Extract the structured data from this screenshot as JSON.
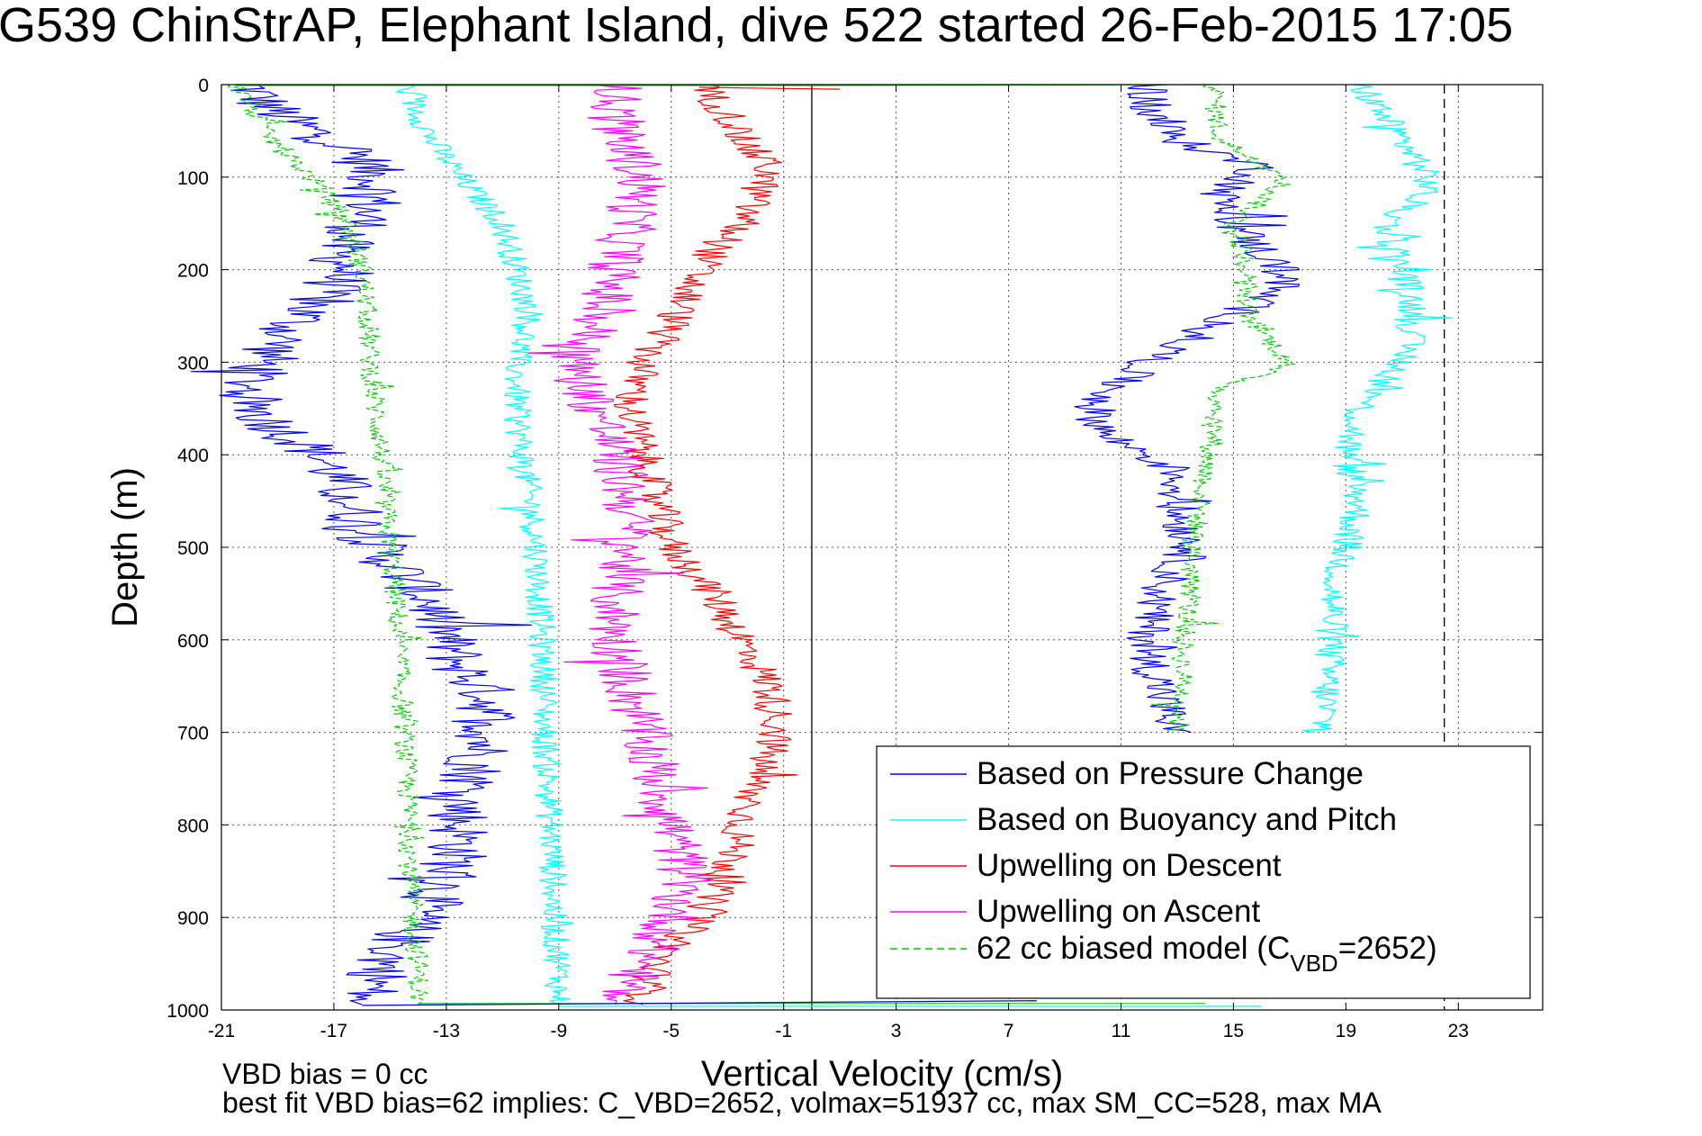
{
  "chart_data": {
    "type": "line",
    "title": "G539 ChinStrAP, Elephant Island, dive 522 started 26-Feb-2015 17:05",
    "xlabel": "Vertical Velocity (cm/s)",
    "ylabel": "Depth (m)",
    "xlim": [
      -21,
      26
    ],
    "ylim": [
      1000,
      0
    ],
    "y_reversed": true,
    "grid": true,
    "xticks": [
      "-21",
      "-17",
      "-13",
      "-9",
      "-5",
      "-1",
      "3",
      "7",
      "11",
      "15",
      "19",
      "23"
    ],
    "yticks": [
      "0",
      "100",
      "200",
      "300",
      "400",
      "500",
      "600",
      "700",
      "800",
      "900",
      "1000"
    ],
    "vlines": [
      {
        "x": 0,
        "style": "solid",
        "color": "#000000"
      },
      {
        "x": 22.5,
        "style": "dashed",
        "color": "#000000"
      }
    ],
    "legend_position": "bottom-right",
    "legend": [
      {
        "label": "Based on Pressure Change",
        "color": "#0000ff",
        "dash": false
      },
      {
        "label": "Based on Buoyancy and Pitch",
        "color": "#00ffff",
        "dash": false
      },
      {
        "label": "Upwelling on Descent",
        "color": "#ff0000",
        "dash": false
      },
      {
        "label": "Upwelling on Ascent",
        "color": "#ff00ff",
        "dash": false
      },
      {
        "label": "62 cc biased model (C",
        "sub": "VBD",
        "tail": "=2652)",
        "color": "#00cc00",
        "dash": true
      }
    ],
    "series": [
      {
        "name": "Based on Pressure Change",
        "color": "#0000ff",
        "branch": "descent",
        "noise": 1.2,
        "depth": [
          0,
          20,
          40,
          60,
          80,
          100,
          120,
          150,
          180,
          200,
          230,
          260,
          280,
          300,
          320,
          340,
          360,
          380,
          400,
          420,
          450,
          480,
          500,
          530,
          560,
          600,
          630,
          660,
          700,
          740,
          780,
          820,
          860,
          900,
          940,
          970,
          990
        ],
        "values": [
          -20,
          -19.5,
          -18.5,
          -17,
          -16,
          -15.5,
          -15.5,
          -16,
          -17,
          -16.5,
          -17.5,
          -18.5,
          -19,
          -19.5,
          -20,
          -20,
          -19.5,
          -18.5,
          -17.5,
          -17,
          -16.5,
          -16,
          -15.5,
          -14.5,
          -13.5,
          -13,
          -12.5,
          -11.5,
          -11.5,
          -12,
          -12.5,
          -12.5,
          -13,
          -14,
          -15,
          -15.5,
          -16
        ]
      },
      {
        "name": "Based on Buoyancy and Pitch",
        "color": "#00ffff",
        "branch": "descent",
        "noise": 0.5,
        "depth": [
          0,
          30,
          60,
          100,
          150,
          200,
          250,
          300,
          350,
          400,
          450,
          500,
          550,
          600,
          650,
          700,
          750,
          800,
          850,
          900,
          950,
          990
        ],
        "values": [
          -14.5,
          -14,
          -13.5,
          -12.5,
          -11,
          -10.5,
          -10,
          -10.5,
          -10.5,
          -10.3,
          -10,
          -9.8,
          -9.7,
          -9.6,
          -9.5,
          -9.5,
          -9.4,
          -9.3,
          -9.2,
          -9.2,
          -9,
          -9
        ]
      },
      {
        "name": "62 cc biased model (CVBD=2652)",
        "color": "#00cc00",
        "branch": "descent",
        "noise": 0.4,
        "depth": [
          0,
          20,
          50,
          80,
          110,
          150,
          200,
          250,
          300,
          350,
          400,
          450,
          500,
          550,
          600,
          650,
          700,
          750,
          800,
          850,
          900,
          950,
          990
        ],
        "values": [
          -20.5,
          -20,
          -19.5,
          -18.5,
          -17.5,
          -16.5,
          -16,
          -15.8,
          -15.7,
          -15.5,
          -15.3,
          -15.2,
          -15,
          -14.8,
          -14.7,
          -14.6,
          -14.5,
          -14.4,
          -14.3,
          -14.3,
          -14.2,
          -14,
          -14
        ]
      },
      {
        "name": "Upwelling on Descent",
        "color": "#ff0000",
        "branch": "descent",
        "noise": 0.7,
        "depth": [
          0,
          30,
          60,
          90,
          120,
          150,
          180,
          200,
          230,
          260,
          300,
          350,
          400,
          450,
          500,
          550,
          600,
          650,
          700,
          750,
          800,
          850,
          900,
          950,
          990
        ],
        "values": [
          -4,
          -3,
          -2.5,
          -1.5,
          -2,
          -2.5,
          -3.5,
          -4,
          -4.5,
          -5,
          -6,
          -6.5,
          -6,
          -5.5,
          -5,
          -3.5,
          -2.5,
          -1.5,
          -1.2,
          -2,
          -2.5,
          -3,
          -4,
          -5.5,
          -6
        ]
      },
      {
        "name": "Upwelling on Ascent",
        "color": "#ff00ff",
        "branch": "descent",
        "noise": 1.0,
        "depth": [
          0,
          50,
          100,
          150,
          200,
          250,
          300,
          330,
          360,
          400,
          450,
          500,
          550,
          600,
          650,
          700,
          750,
          800,
          850,
          900,
          950,
          990
        ],
        "values": [
          -7,
          -7,
          -6,
          -6.5,
          -7,
          -7.5,
          -8.5,
          -8,
          -7.5,
          -7,
          -6.5,
          -6.5,
          -7,
          -7,
          -6.5,
          -6,
          -5.5,
          -5,
          -4.5,
          -5,
          -6,
          -7
        ]
      },
      {
        "name": "Based on Pressure Change",
        "color": "#0000ff",
        "branch": "ascent",
        "noise": 0.8,
        "depth": [
          0,
          30,
          60,
          90,
          120,
          150,
          180,
          210,
          250,
          290,
          320,
          350,
          380,
          400,
          420,
          460,
          500,
          540,
          580,
          620,
          660,
          700
        ],
        "values": [
          12,
          12,
          13,
          16,
          14.5,
          15,
          16,
          17,
          15,
          12.5,
          11,
          10,
          10.5,
          12,
          13,
          13,
          13.5,
          12.5,
          12,
          12,
          12.5,
          12.8
        ]
      },
      {
        "name": "Based on Buoyancy and Pitch",
        "color": "#00ffff",
        "branch": "ascent",
        "noise": 0.6,
        "depth": [
          0,
          40,
          80,
          110,
          150,
          200,
          250,
          300,
          350,
          400,
          450,
          500,
          550,
          600,
          650,
          700
        ],
        "values": [
          19.5,
          20.5,
          21.5,
          22,
          20.5,
          21,
          21.5,
          21,
          19.5,
          19,
          19.5,
          19,
          18.5,
          18.5,
          18.3,
          18.2
        ]
      },
      {
        "name": "62 cc biased model (CVBD=2652)",
        "color": "#00cc00",
        "branch": "ascent",
        "noise": 0.4,
        "depth": [
          0,
          60,
          100,
          150,
          200,
          250,
          300,
          330,
          380,
          420,
          460,
          500,
          550,
          600,
          650,
          700
        ],
        "values": [
          14.3,
          14.5,
          17,
          15,
          15.5,
          15.5,
          17,
          14.5,
          14.3,
          14,
          13.8,
          13.5,
          13.5,
          13.2,
          13.2,
          13
        ]
      }
    ]
  },
  "notes": {
    "line1": "VBD bias = 0 cc",
    "line2": "best fit VBD bias=62 implies: C_VBD=2652, volmax=51937 cc, max SM_CC=528, max MA"
  },
  "colors": {
    "pressure": "#0000ff",
    "buoyancy": "#00ffff",
    "descent": "#ff0000",
    "ascent": "#ff00ff",
    "model": "#00cc00"
  }
}
